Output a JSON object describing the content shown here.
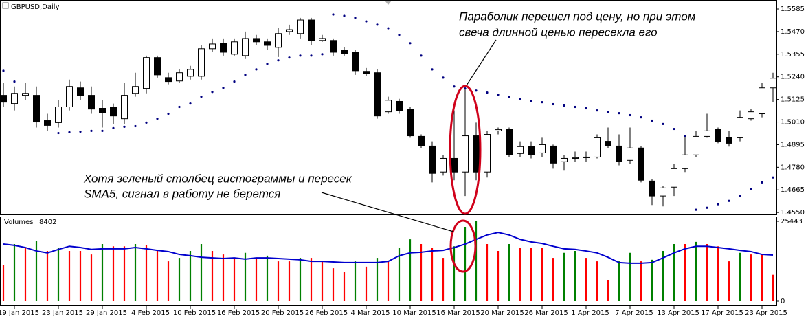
{
  "chart_data": [
    {
      "type": "candlestick",
      "title": "GBPUSD,Daily",
      "open": [
        1.5146,
        1.5104,
        1.5146,
        1.5146,
        1.5017,
        1.5007,
        1.5087,
        1.5184,
        1.5146,
        1.508,
        1.5087,
        1.5027,
        1.5156,
        1.5181,
        1.5338,
        1.5236,
        1.5219,
        1.5243,
        1.5243,
        1.5383,
        1.5411,
        1.5355,
        1.5348,
        1.5435,
        1.5418,
        1.539,
        1.547,
        1.546,
        1.5529,
        1.5425,
        1.5425,
        1.5376,
        1.5365,
        1.5268,
        1.5261,
        1.5062,
        1.5115,
        1.5076,
        1.4937,
        1.4888,
        1.4756,
        1.4825,
        1.4756,
        1.494,
        1.4756,
        1.4965,
        1.4972,
        1.485,
        1.4885,
        1.4853,
        1.4888,
        1.4808,
        1.4825,
        1.4829,
        1.4832,
        1.4912,
        1.4888,
        1.4815,
        1.4878,
        1.471,
        1.4634,
        1.4679,
        1.4773,
        1.4843,
        1.4937,
        1.4972,
        1.493,
        1.493,
        1.5027,
        1.5052,
        1.5184
      ],
      "high": [
        1.5209,
        1.5191,
        1.5209,
        1.5191,
        1.5052,
        1.5121,
        1.5226,
        1.5216,
        1.5191,
        1.5121,
        1.5104,
        1.5209,
        1.5261,
        1.5348,
        1.5348,
        1.5261,
        1.5278,
        1.5296,
        1.54,
        1.5435,
        1.5435,
        1.5435,
        1.547,
        1.5453,
        1.5435,
        1.5487,
        1.5505,
        1.554,
        1.554,
        1.5453,
        1.5435,
        1.539,
        1.5376,
        1.5285,
        1.5278,
        1.5139,
        1.5128,
        1.5087,
        1.4947,
        1.4912,
        1.4843,
        1.5069,
        1.5191,
        1.5007,
        1.4965,
        1.4982,
        1.4982,
        1.4912,
        1.4912,
        1.493,
        1.4895,
        1.4843,
        1.486,
        1.486,
        1.4947,
        1.4982,
        1.4947,
        1.4982,
        1.4888,
        1.4721,
        1.4686,
        1.4797,
        1.4937,
        1.4965,
        1.5052,
        1.4982,
        1.4965,
        1.5069,
        1.5076,
        1.5209,
        1.5261
      ],
      "low": [
        1.5087,
        1.5069,
        1.5121,
        1.4982,
        1.4965,
        1.4982,
        1.5069,
        1.5121,
        1.5052,
        1.4982,
        1.5,
        1.5,
        1.5139,
        1.5156,
        1.5236,
        1.5202,
        1.5209,
        1.5226,
        1.5226,
        1.5365,
        1.5348,
        1.5348,
        1.5331,
        1.54,
        1.5376,
        1.5341,
        1.5453,
        1.5435,
        1.54,
        1.5418,
        1.5348,
        1.5348,
        1.525,
        1.5243,
        1.5027,
        1.5052,
        1.5052,
        1.493,
        1.4878,
        1.4703,
        1.4738,
        1.4714,
        1.4634,
        1.4714,
        1.4728,
        1.4947,
        1.4832,
        1.4832,
        1.4825,
        1.4832,
        1.4773,
        1.4763,
        1.4808,
        1.4808,
        1.4825,
        1.4878,
        1.479,
        1.4797,
        1.4703,
        1.4588,
        1.4581,
        1.4634,
        1.4756,
        1.4832,
        1.493,
        1.4902,
        1.4885,
        1.4912,
        1.5017,
        1.5034,
        1.5111
      ],
      "close": [
        1.5111,
        1.5156,
        1.5156,
        1.501,
        1.4993,
        1.5087,
        1.5191,
        1.5146,
        1.5076,
        1.5059,
        1.5041,
        1.5146,
        1.5191,
        1.5338,
        1.525,
        1.5216,
        1.5261,
        1.5278,
        1.5383,
        1.5407,
        1.5365,
        1.5418,
        1.5435,
        1.5418,
        1.54,
        1.546,
        1.548,
        1.5529,
        1.5425,
        1.5435,
        1.5365,
        1.5358,
        1.5271,
        1.5257,
        1.5041,
        1.5121,
        1.5069,
        1.494,
        1.4888,
        1.4749,
        1.4825,
        1.4756,
        1.494,
        1.4756,
        1.4947,
        1.4972,
        1.4843,
        1.4885,
        1.4843,
        1.4895,
        1.4801,
        1.4825,
        1.4829,
        1.4832,
        1.493,
        1.4888,
        1.4808,
        1.4878,
        1.4714,
        1.4634,
        1.4675,
        1.4773,
        1.4843,
        1.4937,
        1.4965,
        1.4912,
        1.4902,
        1.5034,
        1.5062,
        1.5184,
        1.5233
      ],
      "up_color": "#ffffff",
      "down_color": "#000000",
      "outline_color": "#000000",
      "sar": {
        "color": "#000080",
        "values": [
          1.5271,
          1.5216,
          null,
          null,
          null,
          1.4954,
          1.4958,
          1.4961,
          1.4965,
          1.4965,
          1.4979,
          1.4986,
          1.4989,
          1.5007,
          1.5027,
          1.5052,
          1.5087,
          1.5104,
          1.5139,
          1.5163,
          1.5184,
          1.5216,
          1.525,
          1.5278,
          1.5306,
          1.5324,
          1.5338,
          1.5348,
          1.5348,
          1.5355,
          1.5557,
          1.555,
          1.554,
          1.5522,
          1.5505,
          1.5487,
          1.5453,
          1.5411,
          1.5348,
          1.5278,
          1.5236,
          1.5191,
          1.5181,
          1.517,
          1.516,
          1.5149,
          1.5139,
          1.5128,
          1.5118,
          1.5111,
          1.5101,
          1.5094,
          1.5087,
          1.508,
          1.5069,
          1.5062,
          1.5055,
          1.5045,
          1.5034,
          1.5017,
          1.5,
          1.4975,
          1.4937,
          1.4564,
          1.4574,
          1.4592,
          1.4609,
          1.4634,
          1.4668,
          1.4703,
          1.4728
        ]
      },
      "ylim": [
        1.454,
        1.5627
      ],
      "yticks": [
        1.5585,
        {
          "value": 1.547,
          "label": "1.5470"
        },
        1.5355,
        {
          "value": 1.524,
          "label": "1.5240"
        },
        1.5125,
        {
          "value": 1.501,
          "label": "1.5010"
        },
        1.4895,
        {
          "value": 1.478,
          "label": "1.4780"
        },
        1.4665,
        {
          "value": 1.455,
          "label": "1.4550"
        }
      ],
      "annotations": [
        [
          "Параболик перешел под цену, но при этом",
          "свеча длинной ценью пересекла его"
        ],
        [
          "Хотя зеленый столбец гистограммы и пересек",
          "SMA5, сигнал в работу не берется"
        ]
      ],
      "annotation_color": "#ff0000"
    },
    {
      "type": "bar",
      "title": "Volumes",
      "categories": [
        null,
        "19 Jan 2015",
        null,
        null,
        null,
        "23 Jan 2015",
        null,
        null,
        null,
        "29 Jan 2015",
        null,
        null,
        null,
        "4 Feb 2015",
        null,
        null,
        null,
        "10 Feb 2015",
        null,
        null,
        null,
        "16 Feb 2015",
        null,
        null,
        null,
        "20 Feb 2015",
        null,
        null,
        null,
        "26 Feb 2015",
        null,
        null,
        null,
        "4 Mar 2015",
        null,
        null,
        null,
        "10 Mar 2015",
        null,
        null,
        null,
        "16 Mar 2015",
        null,
        null,
        null,
        "20 Mar 2015",
        null,
        null,
        null,
        "26 Mar 2015",
        null,
        null,
        null,
        "1 Apr 2015",
        null,
        null,
        null,
        "7 Apr 2015",
        null,
        null,
        null,
        "13 Apr 2015",
        null,
        null,
        null,
        "17 Apr 2015",
        null,
        null,
        null,
        "23 Apr 2015",
        null
      ],
      "values": [
        11600,
        18200,
        17100,
        19300,
        16000,
        17100,
        16000,
        16000,
        14900,
        18200,
        17500,
        17500,
        18200,
        17800,
        16000,
        12700,
        13800,
        16000,
        18200,
        16000,
        14900,
        13800,
        15400,
        13800,
        14500,
        12700,
        12700,
        13800,
        13800,
        12700,
        10500,
        9400,
        12700,
        11000,
        13800,
        12700,
        17100,
        19700,
        18200,
        17100,
        13800,
        17500,
        23700,
        25443,
        18200,
        16000,
        18200,
        17100,
        17100,
        17100,
        13800,
        15400,
        16000,
        13800,
        12700,
        6800,
        12700,
        15400,
        12700,
        13200,
        16000,
        18200,
        18200,
        18900,
        18200,
        17500,
        12700,
        15400,
        14900,
        14900,
        8402
      ],
      "up_color": "#008000",
      "down_color": "#ff0000",
      "sma": {
        "color": "#0000cd",
        "values": [
          18200,
          17800,
          17100,
          16000,
          15400,
          16500,
          17500,
          17100,
          16500,
          16700,
          16700,
          16700,
          17100,
          16700,
          16200,
          15800,
          14900,
          14500,
          14000,
          13800,
          13600,
          13800,
          13400,
          13800,
          13800,
          13600,
          13400,
          13200,
          12700,
          12700,
          12500,
          12300,
          12300,
          12300,
          12300,
          12700,
          14500,
          15400,
          15600,
          16000,
          16200,
          17100,
          18200,
          19700,
          21100,
          21900,
          21100,
          19700,
          18900,
          18400,
          17500,
          16700,
          16500,
          16000,
          15400,
          14000,
          12300,
          12100,
          12100,
          12300,
          13800,
          15400,
          16700,
          17500,
          17500,
          17100,
          16700,
          16200,
          15800,
          14900,
          14700
        ]
      },
      "ylim": [
        0,
        25443
      ],
      "yticks": [
        0,
        25443
      ]
    }
  ]
}
